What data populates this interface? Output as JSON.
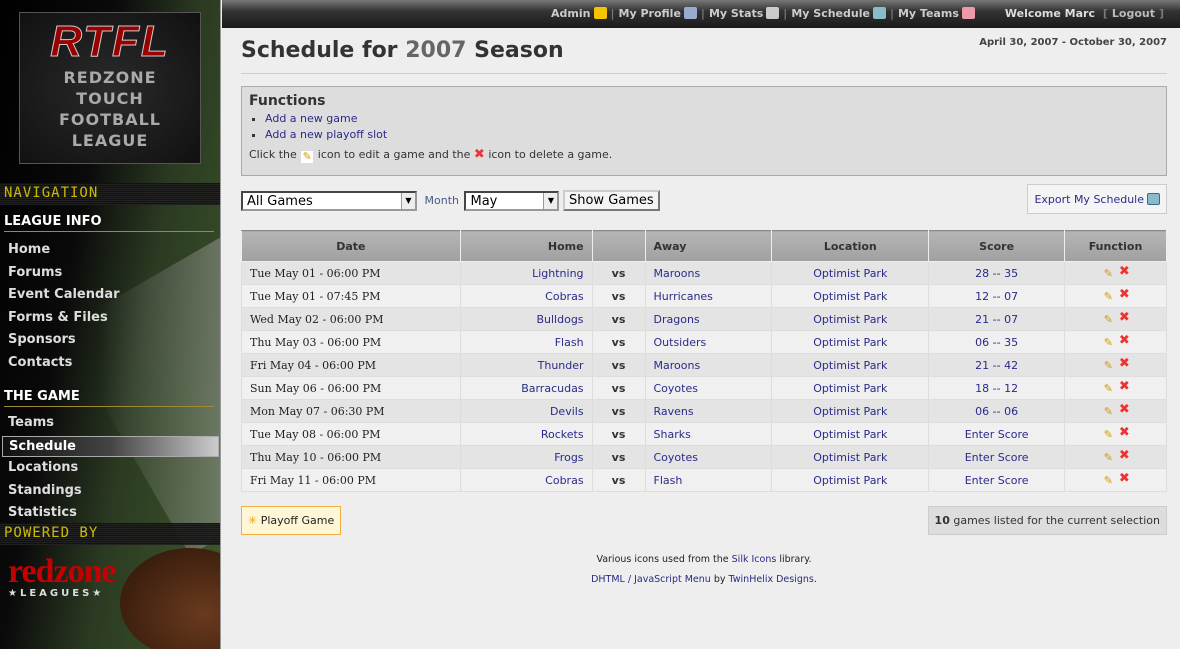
{
  "sidebar": {
    "logo": {
      "title": "RTFL",
      "lines": [
        "REDZONE",
        "TOUCH",
        "FOOTBALL",
        "LEAGUE"
      ]
    },
    "navigation_label": "NAVIGATION",
    "sections": [
      {
        "title": "LEAGUE INFO",
        "items": [
          "Home",
          "Forums",
          "Event Calendar",
          "Forms & Files",
          "Sponsors",
          "Contacts"
        ]
      },
      {
        "title": "THE GAME",
        "items": [
          "Teams",
          "Schedule",
          "Locations",
          "Standings",
          "Statistics"
        ]
      }
    ],
    "active_item": "Schedule",
    "powered_label": "POWERED BY",
    "powered_logo": {
      "name": "redzone",
      "sub": "★LEAGUES★"
    }
  },
  "topbar": {
    "links": [
      {
        "label": "Admin",
        "icon": "star-icon"
      },
      {
        "label": "My Profile",
        "icon": "vcard-icon"
      },
      {
        "label": "My Stats",
        "icon": "calculator-icon"
      },
      {
        "label": "My Schedule",
        "icon": "calendar-icon"
      },
      {
        "label": "My Teams",
        "icon": "users-icon"
      }
    ],
    "welcome": "Welcome Marc",
    "logout": "Logout"
  },
  "page": {
    "title_prefix": "Schedule for",
    "year": "2007",
    "title_suffix": "Season",
    "date_range": "April 30, 2007 - October 30, 2007"
  },
  "functions": {
    "title": "Functions",
    "links": [
      "Add a new game",
      "Add a new playoff slot"
    ],
    "help": [
      "Click the",
      "icon to edit a game and the",
      "icon to delete a game."
    ]
  },
  "filters": {
    "game_filter": "All Games",
    "month_label": "Month",
    "month": "May",
    "show_button": "Show Games",
    "export": "Export My Schedule"
  },
  "table": {
    "headers": [
      "Date",
      "Home",
      "",
      "Away",
      "Location",
      "Score",
      "Function"
    ],
    "rows": [
      [
        "Tue May 01 - 06:00 PM",
        "Lightning",
        "vs",
        "Maroons",
        "Optimist Park",
        "28 -- 35"
      ],
      [
        "Tue May 01 - 07:45 PM",
        "Cobras",
        "vs",
        "Hurricanes",
        "Optimist Park",
        "12 -- 07"
      ],
      [
        "Wed May 02 - 06:00 PM",
        "Bulldogs",
        "vs",
        "Dragons",
        "Optimist Park",
        "21 -- 07"
      ],
      [
        "Thu May 03 - 06:00 PM",
        "Flash",
        "vs",
        "Outsiders",
        "Optimist Park",
        "06 -- 35"
      ],
      [
        "Fri May 04 - 06:00 PM",
        "Thunder",
        "vs",
        "Maroons",
        "Optimist Park",
        "21 -- 42"
      ],
      [
        "Sun May 06 - 06:00 PM",
        "Barracudas",
        "vs",
        "Coyotes",
        "Optimist Park",
        "18 -- 12"
      ],
      [
        "Mon May 07 - 06:30 PM",
        "Devils",
        "vs",
        "Ravens",
        "Optimist Park",
        "06 -- 06"
      ],
      [
        "Tue May 08 - 06:00 PM",
        "Rockets",
        "vs",
        "Sharks",
        "Optimist Park",
        "Enter Score"
      ],
      [
        "Thu May 10 - 06:00 PM",
        "Frogs",
        "vs",
        "Coyotes",
        "Optimist Park",
        "Enter Score"
      ],
      [
        "Fri May 11 - 06:00 PM",
        "Cobras",
        "vs",
        "Flash",
        "Optimist Park",
        "Enter Score"
      ]
    ]
  },
  "bottom": {
    "playoff_button": "Playoff Game",
    "count": "10",
    "count_text": "games listed for the current selection"
  },
  "footer": {
    "line1_pre": "Various icons used from the",
    "line1_link": "Silk Icons",
    "line1_post": "library.",
    "line2_link1": "DHTML / JavaScript Menu",
    "line2_mid": "by",
    "line2_link2": "TwinHelix Designs",
    "line2_post": "."
  }
}
